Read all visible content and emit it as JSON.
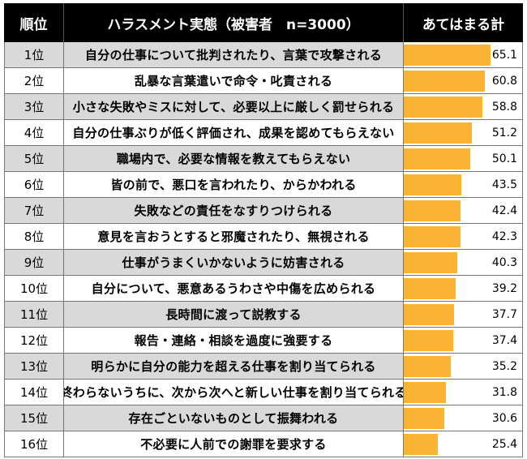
{
  "header": {
    "rank": "順位",
    "item": "ハラスメント実態（被害者　n=3000）",
    "value": "あてはまる計"
  },
  "colors": {
    "bar": "#f9b233",
    "header_bg": "#000000",
    "shade": "#d9d9d9"
  },
  "chart_data": {
    "type": "bar",
    "title": "",
    "categories": [
      "自分の仕事について批判されたり、言葉で攻撃される",
      "乱暴な言葉遣いで命令・叱責される",
      "小さな失敗やミスに対して、必要以上に厳しく罰せられる",
      "自分の仕事ぶりが低く評価され、成果を認めてもらえない",
      "職場内で、必要な情報を教えてもらえない",
      "皆の前で、悪口を言われたり、からかわれる",
      "失敗などの責任をなすりつけられる",
      "意見を言おうとすると邪魔されたり、無視される",
      "仕事がうまくいかないように妨害される",
      "自分について、悪意あるうわさや中傷を広められる",
      "長時間に渡って説教する",
      "報告・連絡・相談を過度に強要する",
      "明らかに自分の能力を超える仕事を割り当てられる",
      "終わらないうちに、次から次へと新しい仕事を割り当てられる",
      "存在ごといないものとして振舞われる",
      "不必要に人前での謝罪を要求する"
    ],
    "ranks": [
      "1位",
      "2位",
      "3位",
      "4位",
      "5位",
      "6位",
      "7位",
      "8位",
      "9位",
      "10位",
      "11位",
      "12位",
      "13位",
      "14位",
      "15位",
      "16位"
    ],
    "values": [
      65.1,
      60.8,
      58.8,
      51.2,
      50.1,
      43.5,
      42.4,
      42.3,
      40.3,
      39.2,
      37.7,
      37.4,
      35.2,
      31.8,
      30.6,
      25.4
    ],
    "value_labels": [
      "65.1",
      "60.8",
      "58.8",
      "51.2",
      "50.1",
      "43.5",
      "42.4",
      "42.3",
      "40.3",
      "39.2",
      "37.7",
      "37.4",
      "35.2",
      "31.8",
      "30.6",
      "25.4"
    ],
    "xlim": [
      0,
      65.1
    ]
  }
}
